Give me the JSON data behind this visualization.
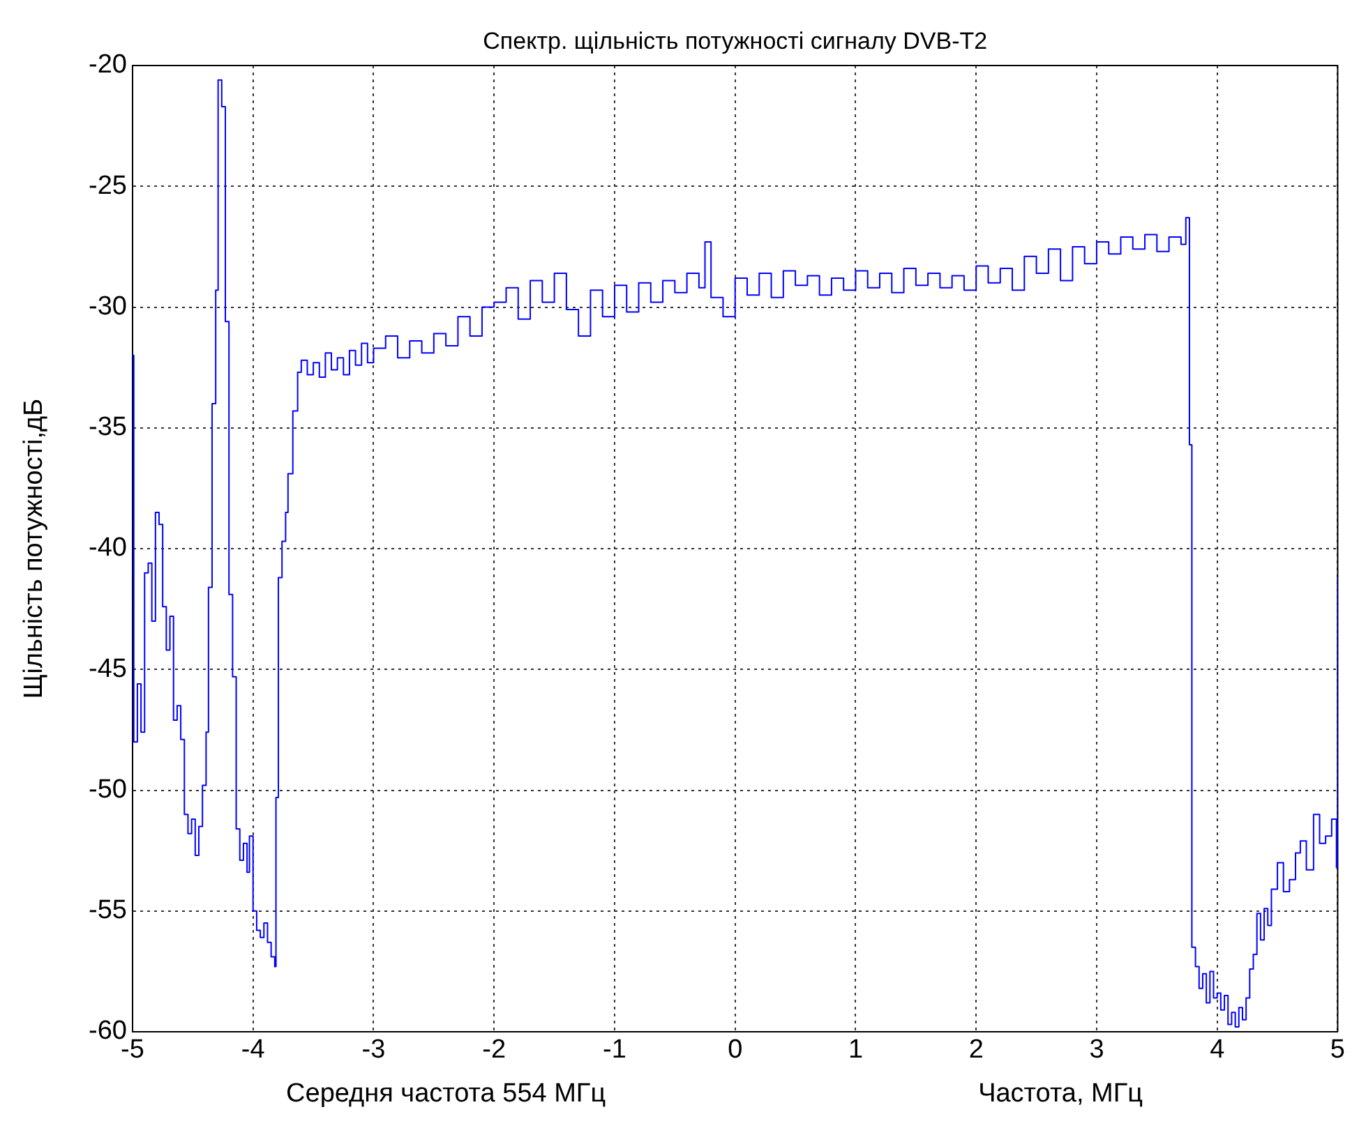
{
  "chart_data": {
    "type": "step",
    "title": "Спектр. щільність потужності сигналу DVB-T2",
    "xlabel": "Частота, МГц",
    "ylabel": "Щільність потужності,дБ",
    "annotations": [
      "Середня частота 554 МГц"
    ],
    "x": [
      -5,
      -4.99,
      -4.96,
      -4.93,
      -4.9,
      -4.87,
      -4.84,
      -4.81,
      -4.78,
      -4.75,
      -4.72,
      -4.69,
      -4.66,
      -4.63,
      -4.6,
      -4.57,
      -4.54,
      -4.51,
      -4.48,
      -4.45,
      -4.42,
      -4.39,
      -4.37,
      -4.34,
      -4.31,
      -4.29,
      -4.26,
      -4.23,
      -4.2,
      -4.17,
      -4.14,
      -4.11,
      -4.08,
      -4.05,
      -4.03,
      -4.0,
      -3.97,
      -3.94,
      -3.91,
      -3.88,
      -3.85,
      -3.82,
      -3.81,
      -3.79,
      -3.76,
      -3.73,
      -3.71,
      -3.67,
      -3.63,
      -3.6,
      -3.55,
      -3.5,
      -3.45,
      -3.4,
      -3.35,
      -3.3,
      -3.25,
      -3.2,
      -3.15,
      -3.1,
      -3.05,
      -3.0,
      -2.9,
      -2.8,
      -2.7,
      -2.6,
      -2.5,
      -2.4,
      -2.3,
      -2.2,
      -2.1,
      -2.0,
      -1.9,
      -1.8,
      -1.7,
      -1.6,
      -1.5,
      -1.4,
      -1.3,
      -1.2,
      -1.1,
      -1.0,
      -0.9,
      -0.8,
      -0.7,
      -0.6,
      -0.5,
      -0.4,
      -0.3,
      -0.25,
      -0.2,
      -0.1,
      0.0,
      0.1,
      0.2,
      0.3,
      0.4,
      0.5,
      0.6,
      0.7,
      0.8,
      0.9,
      1.0,
      1.1,
      1.2,
      1.3,
      1.4,
      1.5,
      1.6,
      1.7,
      1.8,
      1.9,
      2.0,
      2.1,
      2.2,
      2.3,
      2.4,
      2.5,
      2.6,
      2.7,
      2.8,
      2.9,
      3.0,
      3.1,
      3.2,
      3.3,
      3.4,
      3.5,
      3.6,
      3.7,
      3.74,
      3.77,
      3.79,
      3.82,
      3.85,
      3.88,
      3.91,
      3.94,
      3.97,
      4.0,
      4.03,
      4.06,
      4.09,
      4.12,
      4.15,
      4.18,
      4.21,
      4.24,
      4.27,
      4.3,
      4.33,
      4.36,
      4.39,
      4.42,
      4.45,
      4.5,
      4.55,
      4.6,
      4.65,
      4.69,
      4.74,
      4.8,
      4.85,
      4.9,
      4.95,
      4.99,
      5.0
    ],
    "series": [
      {
        "color": "#0000ff",
        "values": [
          -32,
          -48,
          -45.6,
          -47.6,
          -41,
          -40.6,
          -43,
          -38.5,
          -39,
          -42.4,
          -44.2,
          -42.8,
          -47.1,
          -46.5,
          -47.9,
          -51,
          -51.8,
          -51.2,
          -52.7,
          -51.5,
          -49.8,
          -47.6,
          -41.6,
          -34,
          -29.3,
          -20.6,
          -21.7,
          -30.6,
          -41.9,
          -45.3,
          -51.6,
          -52.9,
          -52.2,
          -53.4,
          -51.9,
          -55,
          -55.8,
          -56.1,
          -55.5,
          -56.3,
          -56.9,
          -57.3,
          -50.3,
          -41.2,
          -39.7,
          -38.5,
          -36.9,
          -34.3,
          -32.7,
          -32.2,
          -32.8,
          -32.3,
          -32.9,
          -31.9,
          -32.6,
          -32.1,
          -32.8,
          -31.8,
          -32.4,
          -31.5,
          -32.3,
          -31.7,
          -31.2,
          -32.1,
          -31.4,
          -31.9,
          -31.1,
          -31.6,
          -30.4,
          -31.2,
          -30.0,
          -29.8,
          -29.2,
          -30.5,
          -28.9,
          -29.8,
          -28.6,
          -30.1,
          -31.2,
          -29.3,
          -30.4,
          -29.1,
          -30.2,
          -29.0,
          -29.8,
          -28.9,
          -29.4,
          -28.6,
          -29.2,
          -27.3,
          -29.6,
          -30.4,
          -28.8,
          -29.5,
          -28.6,
          -29.6,
          -28.5,
          -29.1,
          -28.7,
          -29.5,
          -28.8,
          -29.3,
          -28.5,
          -29.2,
          -28.6,
          -29.4,
          -28.4,
          -29.1,
          -28.6,
          -29.2,
          -28.7,
          -29.3,
          -28.3,
          -29.0,
          -28.4,
          -29.3,
          -27.9,
          -28.6,
          -27.6,
          -28.9,
          -27.5,
          -28.2,
          -27.3,
          -27.8,
          -27.1,
          -27.6,
          -27.0,
          -27.7,
          -27.1,
          -27.4,
          -26.3,
          -35.7,
          -56.5,
          -57.3,
          -58.2,
          -57.6,
          -58.8,
          -57.5,
          -58.6,
          -58.4,
          -59.1,
          -58.5,
          -59.7,
          -59.2,
          -59.8,
          -59.0,
          -59.5,
          -58.6,
          -57.4,
          -56.8,
          -55.1,
          -56.2,
          -54.9,
          -55.6,
          -54.1,
          -53.0,
          -54.2,
          -53.7,
          -52.6,
          -52.1,
          -53.3,
          -51.0,
          -52.2,
          -51.9,
          -51.2,
          -53.2,
          -41.2
        ]
      }
    ],
    "xlim": [
      -5,
      5
    ],
    "xticks": [
      -5,
      -4,
      -3,
      -2,
      -1,
      0,
      1,
      2,
      3,
      4,
      5
    ],
    "ylim": [
      -60,
      -20
    ],
    "yticks": [
      -60,
      -55,
      -50,
      -45,
      -40,
      -35,
      -30,
      -25,
      -20
    ],
    "grid": true,
    "legend": false
  }
}
